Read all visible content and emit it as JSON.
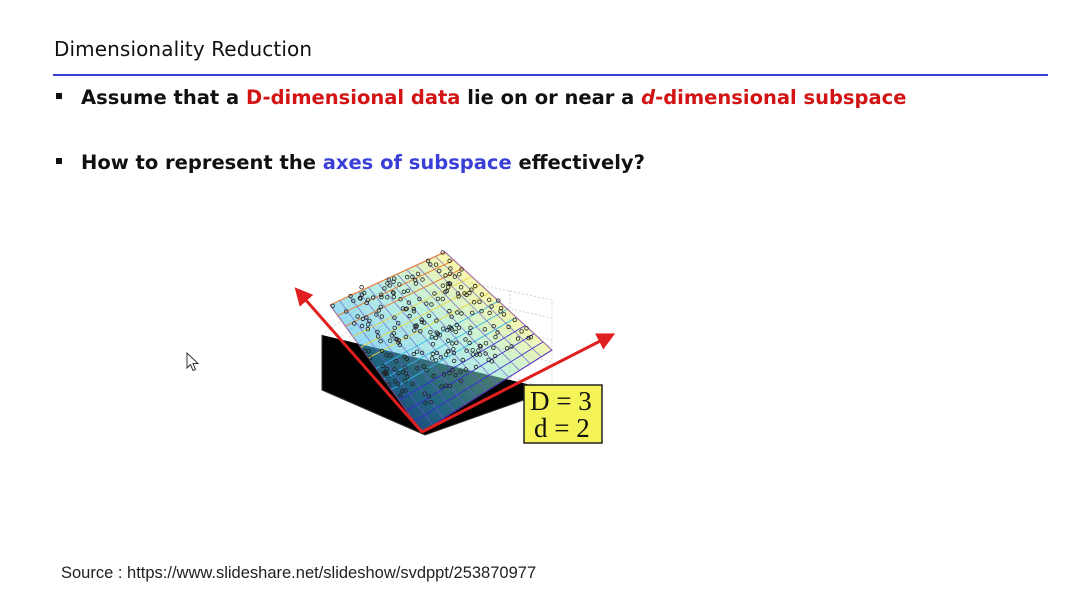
{
  "title": "Dimensionality Reduction",
  "bullets": [
    {
      "p1": "Assume that a ",
      "r1": "D-dimensional data",
      "p2": " lie on or near a ",
      "r2_italic": "d",
      "r2": "-dimensional subspace"
    },
    {
      "p1": "How to represent the ",
      "b1": "axes of subspace",
      "p2": " effectively?"
    }
  ],
  "figure": {
    "label_line1": "D = 3",
    "label_line2": "d = 2",
    "label_bg": "#f4f458",
    "axis_color": "#e02020"
  },
  "source": "Source : https://www.slideshare.net/slideshow/svdppt/253870977",
  "colors": {
    "red": "#d21414",
    "blue": "#3a3fd8",
    "rule": "#3a3fd8"
  }
}
